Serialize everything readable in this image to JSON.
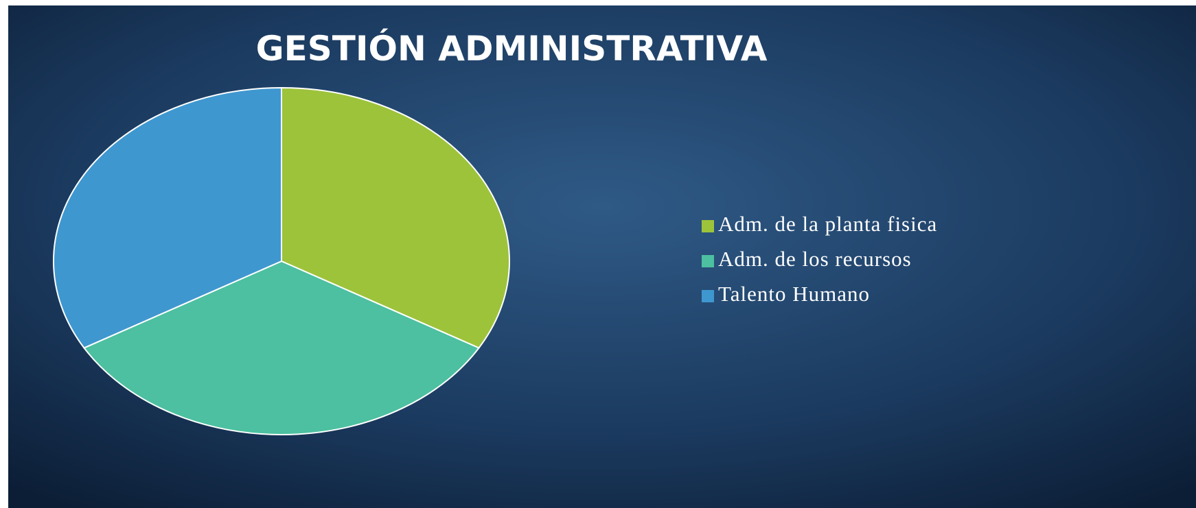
{
  "chart_data": {
    "type": "pie",
    "title": "GESTIÓN ADMINISTRATIVA",
    "categories": [
      "Adm. de la planta fisica",
      "Adm. de los recursos",
      "Talento Humano"
    ],
    "values": [
      33.3,
      33.3,
      33.3
    ],
    "colors": [
      "#9dc33b",
      "#4cc0a0",
      "#3f97cf"
    ],
    "legend": "right"
  }
}
